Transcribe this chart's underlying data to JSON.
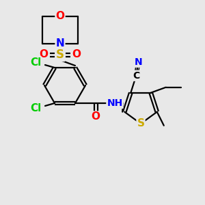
{
  "bg_color": "#e8e8e8",
  "atom_colors": {
    "O": "#ff0000",
    "N": "#0000ff",
    "S": "#ccaa00",
    "Cl": "#00cc00",
    "C": "#000000",
    "H": "#555555"
  },
  "bond_color": "#000000",
  "figsize": [
    3.0,
    3.0
  ],
  "dpi": 100
}
